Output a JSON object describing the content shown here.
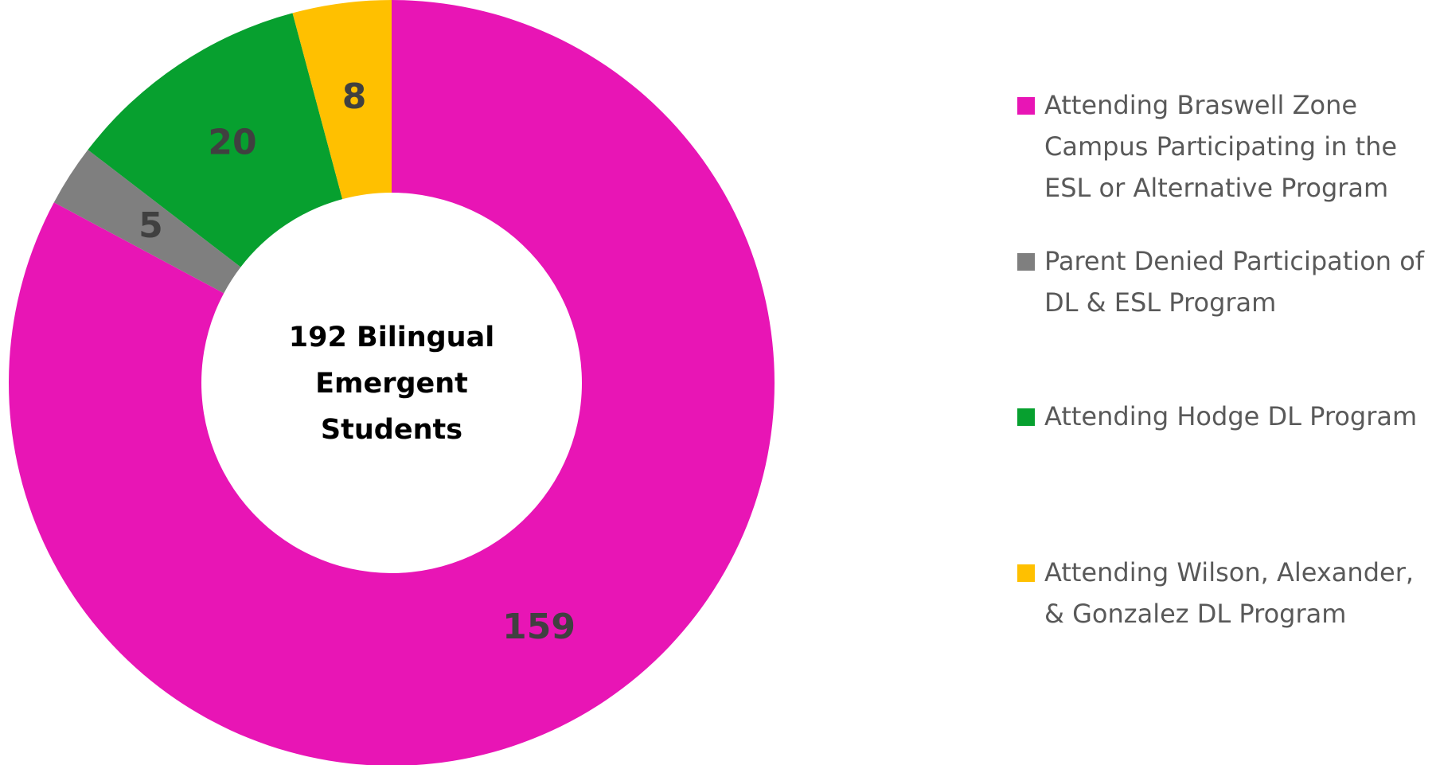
{
  "chart_data": {
    "type": "donut",
    "center_label": "192 Bilingual Emergent Students",
    "categories": [
      "Attending Braswell Zone Campus Participating in the ESL or Alternative Program",
      "Parent Denied Participation of DL & ESL Program",
      "Attending Hodge DL Program",
      "Attending Wilson, Alexander, & Gonzalez DL Program"
    ],
    "values": [
      159,
      5,
      20,
      8
    ],
    "colors": [
      "#e815b5",
      "#7f7f7f",
      "#07a02f",
      "#ffc000"
    ],
    "legend": "right"
  }
}
